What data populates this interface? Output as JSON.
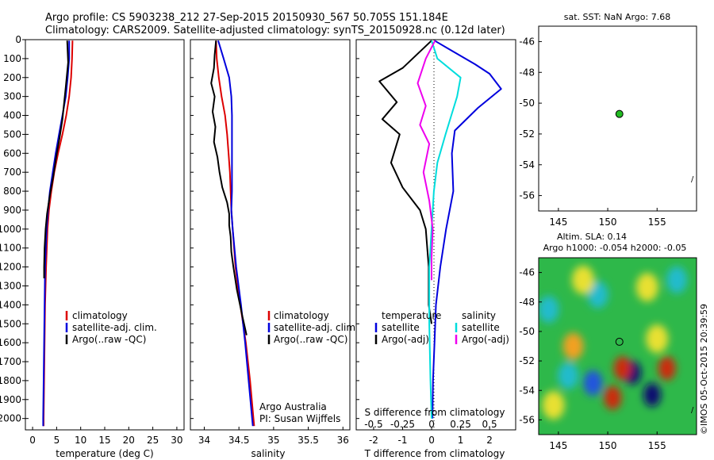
{
  "header": {
    "line1": "Argo profile: CS 5903238_212 27-Sep-2015 20150930_567 50.705S 151.184E",
    "line2": "Climatology: CARS2009. Satellite-adjusted climatology: synTS_20150928.nc (0.12d later)"
  },
  "colors": {
    "climatology": "#dd0000",
    "satellite": "#0000dd",
    "argo": "#000000",
    "sal_satellite": "#00e5e5",
    "sal_argo": "#ee00ee",
    "marker": "#22bb22"
  },
  "chart_data": [
    {
      "type": "line",
      "id": "temperature",
      "xlabel": "temperature (deg C)",
      "ylabel": "",
      "xlim": [
        -1.5,
        31.5
      ],
      "ylim": [
        2060,
        0
      ],
      "xticks": [
        "0",
        "5",
        "10",
        "15",
        "20",
        "25",
        "30"
      ],
      "xtick_values": [
        0,
        5,
        10,
        15,
        20,
        25,
        30
      ],
      "yticks": [
        "0",
        "100",
        "200",
        "300",
        "400",
        "500",
        "600",
        "700",
        "800",
        "900",
        "1000",
        "1100",
        "1200",
        "1300",
        "1400",
        "1500",
        "1600",
        "1700",
        "1800",
        "1900",
        "2000"
      ],
      "ytick_values": [
        0,
        100,
        200,
        300,
        400,
        500,
        600,
        700,
        800,
        900,
        1000,
        1100,
        1200,
        1300,
        1400,
        1500,
        1600,
        1700,
        1800,
        1900,
        2000
      ],
      "legend": [
        "climatology",
        "satellite-adj. clim.",
        "Argo(..raw -QC)"
      ],
      "series": [
        {
          "name": "climatology",
          "color": "#dd0000",
          "x": [
            8.3,
            8.2,
            8.0,
            7.6,
            7.0,
            6.2,
            5.3,
            4.5,
            3.9,
            3.4,
            3.1,
            2.8,
            2.6,
            2.5,
            2.4,
            2.3,
            2.3
          ],
          "y": [
            5,
            100,
            200,
            300,
            400,
            500,
            600,
            700,
            800,
            900,
            1000,
            1200,
            1400,
            1600,
            1800,
            2000,
            2040
          ]
        },
        {
          "name": "satellite-adj. clim.",
          "color": "#0000dd",
          "x": [
            7.6,
            7.6,
            7.3,
            6.9,
            6.2,
            5.5,
            4.8,
            4.2,
            3.6,
            3.2,
            2.9,
            2.6,
            2.5,
            2.4,
            2.3,
            2.2,
            2.2
          ],
          "y": [
            5,
            100,
            200,
            300,
            400,
            500,
            600,
            700,
            800,
            900,
            1000,
            1200,
            1400,
            1600,
            1800,
            2000,
            2040
          ]
        },
        {
          "name": "Argo(..raw -QC)",
          "color": "#000000",
          "x": [
            7.2,
            7.4,
            6.9,
            6.2,
            5.6,
            4.9,
            4.3,
            3.6,
            3.0,
            2.7,
            2.5,
            2.4,
            2.4
          ],
          "y": [
            5,
            120,
            250,
            420,
            520,
            620,
            720,
            820,
            920,
            1000,
            1100,
            1200,
            1260
          ]
        }
      ]
    },
    {
      "type": "line",
      "id": "salinity",
      "xlabel": "salinity",
      "ylabel": "",
      "xlim": [
        33.8,
        36.1
      ],
      "ylim": [
        2060,
        0
      ],
      "xticks": [
        "34",
        "34.5",
        "35",
        "35.5",
        "36"
      ],
      "xtick_values": [
        34,
        34.5,
        35,
        35.5,
        36
      ],
      "legend": [
        "climatology",
        "satellite-adj. clim.",
        "Argo(..raw -QC)"
      ],
      "annotations": [
        "Argo Australia",
        "PI: Susan Wijffels"
      ],
      "series": [
        {
          "name": "climatology",
          "color": "#dd0000",
          "x": [
            34.17,
            34.18,
            34.21,
            34.25,
            34.3,
            34.33,
            34.35,
            34.37,
            34.38,
            34.39,
            34.41,
            34.45,
            34.52,
            34.6,
            34.66,
            34.71,
            34.72
          ],
          "y": [
            5,
            100,
            200,
            300,
            400,
            500,
            600,
            700,
            800,
            900,
            1000,
            1200,
            1400,
            1600,
            1800,
            2000,
            2040
          ]
        },
        {
          "name": "satellite-adj. clim.",
          "color": "#0000dd",
          "x": [
            34.2,
            34.28,
            34.36,
            34.39,
            34.4,
            34.4,
            34.4,
            34.4,
            34.4,
            34.39,
            34.41,
            34.46,
            34.53,
            34.59,
            34.64,
            34.69,
            34.7
          ],
          "y": [
            5,
            100,
            200,
            300,
            400,
            500,
            600,
            700,
            800,
            900,
            1000,
            1200,
            1400,
            1600,
            1800,
            2000,
            2040
          ]
        },
        {
          "name": "Argo(..raw -QC)",
          "color": "#000000",
          "x": [
            34.17,
            34.15,
            34.14,
            34.1,
            34.15,
            34.12,
            34.16,
            34.14,
            34.19,
            34.22,
            34.26,
            34.33,
            34.36,
            34.36,
            34.38,
            34.39,
            34.42,
            34.47,
            34.55,
            34.61
          ],
          "y": [
            5,
            80,
            150,
            230,
            300,
            380,
            460,
            540,
            620,
            700,
            780,
            860,
            920,
            980,
            1040,
            1120,
            1200,
            1320,
            1460,
            1560
          ]
        }
      ]
    },
    {
      "type": "line",
      "id": "difference",
      "xlabel": "T difference from climatology",
      "xlabel2": "S difference from climatology",
      "xlim": [
        -2.6,
        2.9
      ],
      "ylim": [
        2060,
        0
      ],
      "xticks": [
        "-2",
        "-1",
        "0",
        "1",
        "2"
      ],
      "xtick_values": [
        -2,
        -1,
        0,
        1,
        2
      ],
      "xticks_top": [
        "-0.5",
        "-0.25",
        "0",
        "0.25",
        "0.5"
      ],
      "xtick_top_values": [
        -0.5,
        -0.25,
        0,
        0.25,
        0.5
      ],
      "legend_temperature": {
        "title": "temperature",
        "items": [
          "satellite",
          "Argo(-adj)"
        ]
      },
      "legend_salinity": {
        "title": "salinity",
        "items": [
          "satellite",
          "Argo(-adj)"
        ]
      },
      "series": [
        {
          "name": "T satellite",
          "color": "#0000dd",
          "x": [
            0.1,
            0.6,
            1.5,
            2.0,
            2.4,
            1.6,
            0.8,
            0.7,
            0.75,
            0.5,
            0.3,
            0.15,
            0.1,
            0.05,
            0.03
          ],
          "y": [
            5,
            50,
            130,
            180,
            260,
            360,
            480,
            600,
            800,
            1000,
            1200,
            1400,
            1600,
            1800,
            2000
          ]
        },
        {
          "name": "T Argo(-adj)",
          "color": "#000000",
          "x": [
            0.0,
            -1.0,
            -1.8,
            -1.2,
            -1.7,
            -1.1,
            -1.4,
            -1.0,
            -0.4,
            -0.2,
            -0.1,
            -0.1,
            0.0
          ],
          "y": [
            5,
            150,
            220,
            330,
            420,
            500,
            650,
            780,
            900,
            1000,
            1200,
            1400,
            1500
          ]
        },
        {
          "name": "S satellite",
          "color": "#00dddd",
          "x": [
            0.0,
            0.05,
            0.25,
            0.22,
            0.17,
            0.12,
            0.05,
            0.02,
            0.0,
            -0.02,
            -0.02,
            -0.01,
            0.0
          ],
          "y": [
            5,
            100,
            200,
            300,
            400,
            500,
            650,
            800,
            1000,
            1200,
            1500,
            1800,
            2000
          ]
        },
        {
          "name": "S Argo(-adj)",
          "color": "#ee00ee",
          "x": [
            0.03,
            -0.05,
            -0.12,
            -0.05,
            -0.1,
            -0.02,
            -0.07,
            -0.02,
            0.01,
            0.0,
            0.0
          ],
          "y": [
            5,
            100,
            230,
            350,
            450,
            550,
            700,
            850,
            1000,
            1150,
            1270
          ]
        }
      ]
    },
    {
      "type": "scatter",
      "id": "sst-map",
      "title": "sat. SST: NaN Argo: 7.68",
      "xlim": [
        143,
        159
      ],
      "ylim": [
        -57,
        -45
      ],
      "xticks": [
        "145",
        "150",
        "155"
      ],
      "xtick_values": [
        145,
        150,
        155
      ],
      "yticks": [
        "-46",
        "-48",
        "-50",
        "-52",
        "-54",
        "-56"
      ],
      "ytick_values": [
        -46,
        -48,
        -50,
        -52,
        -54,
        -56
      ],
      "points": [
        {
          "x": 151.18,
          "y": -50.7
        }
      ]
    },
    {
      "type": "heatmap",
      "id": "sla-map",
      "title": "Altim. SLA: 0.14",
      "subtitle": "Argo h1000: -0.054 h2000: -0.05",
      "xlim": [
        143,
        159
      ],
      "ylim": [
        -57,
        -45
      ],
      "xticks": [
        "145",
        "150",
        "155"
      ],
      "xtick_values": [
        145,
        150,
        155
      ],
      "yticks": [
        "-46",
        "-48",
        "-50",
        "-52",
        "-54",
        "-56"
      ],
      "ytick_values": [
        -46,
        -48,
        -50,
        -52,
        -54,
        -56
      ],
      "points": [
        {
          "x": 151.18,
          "y": -50.7
        }
      ],
      "blobs": [
        {
          "x": 152.5,
          "y": -52.8,
          "value": -1.0
        },
        {
          "x": 154.5,
          "y": -54.3,
          "value": -1.0
        },
        {
          "x": 148.5,
          "y": -53.5,
          "value": -0.7
        },
        {
          "x": 146.0,
          "y": -53.0,
          "value": -0.4
        },
        {
          "x": 144.0,
          "y": -48.5,
          "value": -0.3
        },
        {
          "x": 149.0,
          "y": -47.5,
          "value": -0.25
        },
        {
          "x": 157.0,
          "y": -46.5,
          "value": -0.25
        },
        {
          "x": 150.5,
          "y": -54.5,
          "value": 1.0
        },
        {
          "x": 151.5,
          "y": -52.5,
          "value": 0.8
        },
        {
          "x": 156.0,
          "y": -52.5,
          "value": 0.9
        },
        {
          "x": 155.0,
          "y": -50.5,
          "value": 0.4
        },
        {
          "x": 146.5,
          "y": -51.0,
          "value": 0.45
        },
        {
          "x": 147.5,
          "y": -46.5,
          "value": 0.35
        },
        {
          "x": 154.0,
          "y": -47.0,
          "value": 0.3
        },
        {
          "x": 144.5,
          "y": -55.0,
          "value": 0.3
        }
      ]
    }
  ],
  "credit": "©IMOS 05-Oct-2015 20:39:59"
}
